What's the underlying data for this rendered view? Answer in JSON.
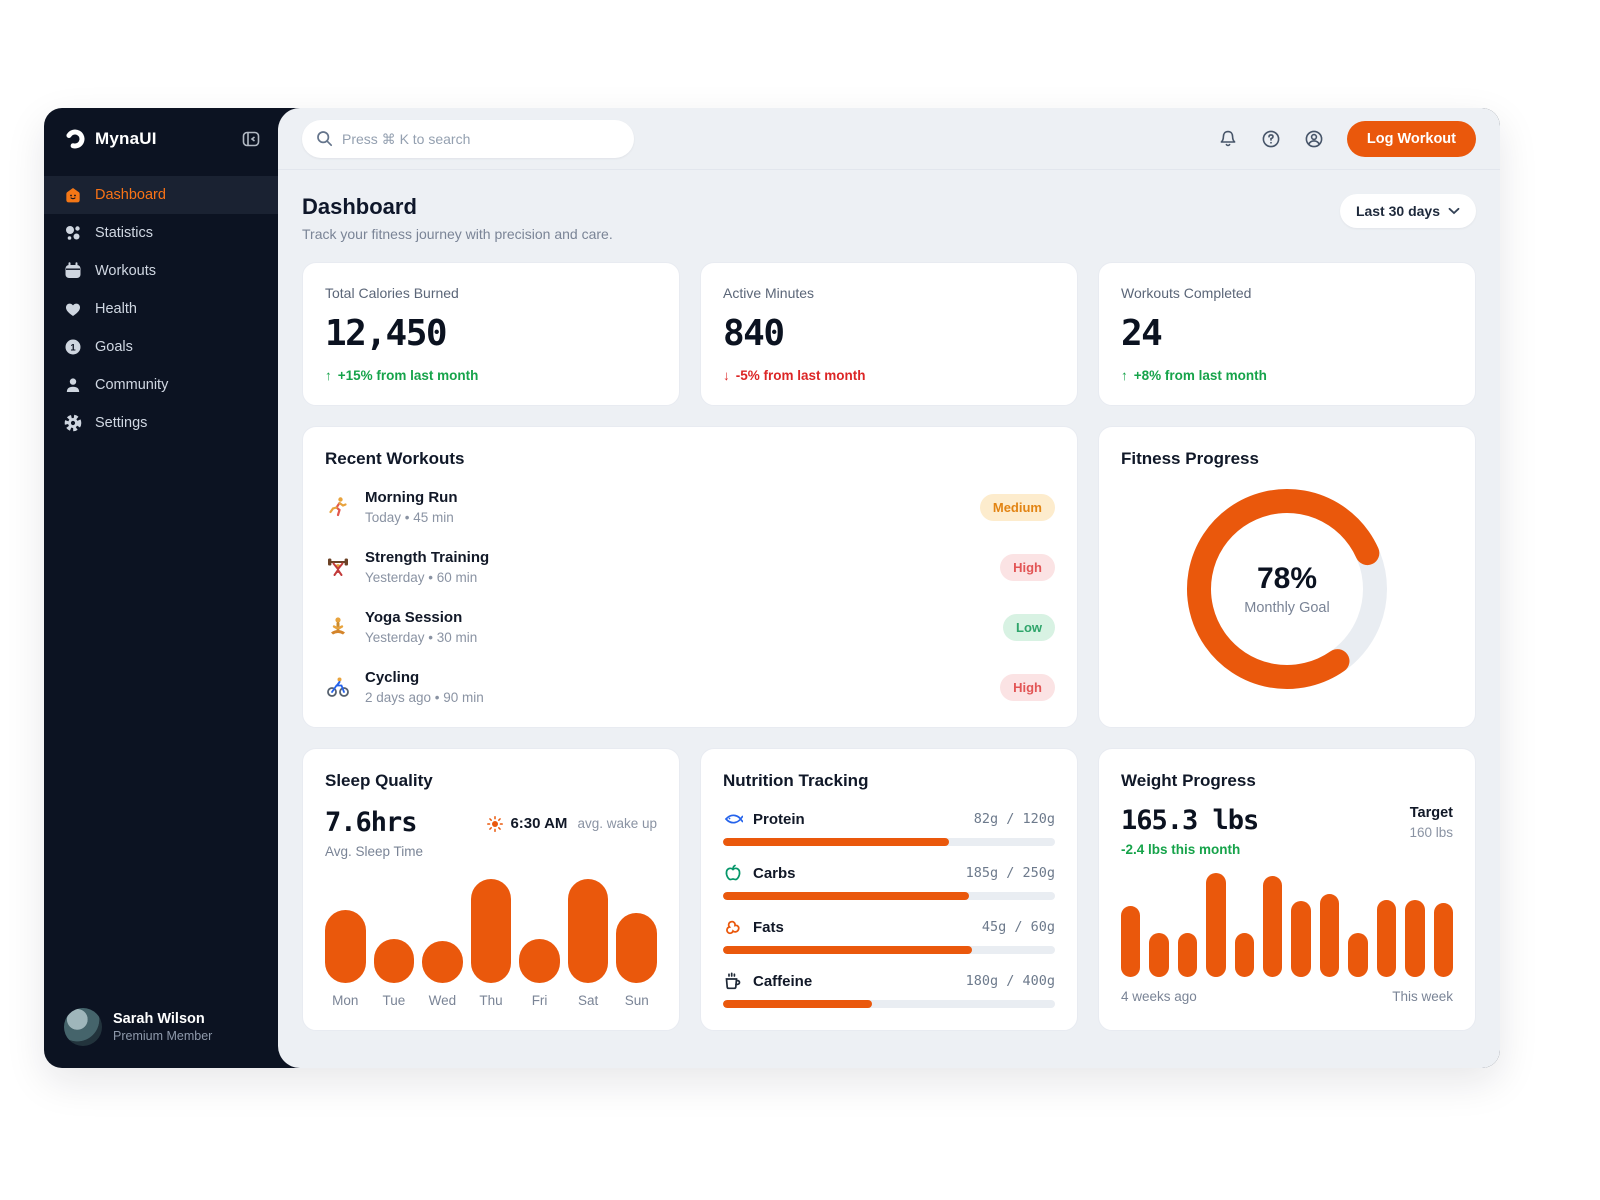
{
  "app": {
    "brand": "MynaUI",
    "accent": "#ea580c"
  },
  "sidebar": {
    "items": [
      {
        "label": "Dashboard",
        "icon": "home-icon",
        "active": true
      },
      {
        "label": "Statistics",
        "icon": "bubbles-icon",
        "active": false
      },
      {
        "label": "Workouts",
        "icon": "calendar-icon",
        "active": false
      },
      {
        "label": "Health",
        "icon": "heart-icon",
        "active": false
      },
      {
        "label": "Goals",
        "icon": "goal-icon",
        "active": false
      },
      {
        "label": "Community",
        "icon": "person-icon",
        "active": false
      },
      {
        "label": "Settings",
        "icon": "gear-icon",
        "active": false
      }
    ],
    "user": {
      "name": "Sarah Wilson",
      "role": "Premium Member"
    }
  },
  "header": {
    "search_placeholder": "Press ⌘ K to search",
    "log_workout_label": "Log Workout"
  },
  "page": {
    "title": "Dashboard",
    "subtitle": "Track your fitness journey with precision and care.",
    "range_label": "Last 30 days"
  },
  "stats": [
    {
      "label": "Total Calories Burned",
      "value": "12,450",
      "arrow": "↑",
      "change": "+15% from last month",
      "direction": "up"
    },
    {
      "label": "Active Minutes",
      "value": "840",
      "arrow": "↓",
      "change": "-5% from last month",
      "direction": "down"
    },
    {
      "label": "Workouts Completed",
      "value": "24",
      "arrow": "↑",
      "change": "+8% from last month",
      "direction": "up"
    }
  ],
  "recent_workouts": {
    "title": "Recent Workouts",
    "items": [
      {
        "name": "Morning Run",
        "meta": "Today • 45 min",
        "intensity": "Medium",
        "icon": "running-icon"
      },
      {
        "name": "Strength Training",
        "meta": "Yesterday • 60 min",
        "intensity": "High",
        "icon": "weightlifting-icon"
      },
      {
        "name": "Yoga Session",
        "meta": "Yesterday • 30 min",
        "intensity": "Low",
        "icon": "yoga-icon"
      },
      {
        "name": "Cycling",
        "meta": "2 days ago • 90 min",
        "intensity": "High",
        "icon": "cycling-icon"
      }
    ]
  },
  "fitness_progress": {
    "title": "Fitness Progress",
    "percent": 78,
    "percent_label": "78%",
    "caption": "Monthly Goal"
  },
  "sleep": {
    "title": "Sleep Quality",
    "avg_value": "7.6hrs",
    "avg_label": "Avg. Sleep Time",
    "wake_time": "6:30 AM",
    "wake_label": "avg. wake up",
    "chart": {
      "type": "bar",
      "categories": [
        "Mon",
        "Tue",
        "Wed",
        "Thu",
        "Fri",
        "Sat",
        "Sun"
      ],
      "heights_pct": [
        70,
        42,
        40,
        100,
        42,
        100,
        67
      ]
    }
  },
  "nutrition": {
    "title": "Nutrition Tracking",
    "items": [
      {
        "name": "Protein",
        "icon": "fish-icon",
        "values": "82g / 120g",
        "percent": 68
      },
      {
        "name": "Carbs",
        "icon": "apple-icon",
        "values": "185g / 250g",
        "percent": 74
      },
      {
        "name": "Fats",
        "icon": "peanut-icon",
        "values": "45g / 60g",
        "percent": 75
      },
      {
        "name": "Caffeine",
        "icon": "coffee-icon",
        "values": "180g / 400g",
        "percent": 45
      }
    ]
  },
  "weight": {
    "title": "Weight Progress",
    "value": "165.3 lbs",
    "change": "-2.4 lbs this month",
    "target_label": "Target",
    "target_value": "160 lbs",
    "chart": {
      "type": "bar",
      "heights_pct": [
        68,
        42,
        42,
        100,
        42,
        97,
        73,
        80,
        42,
        74,
        74,
        71
      ],
      "left_label": "4 weeks ago",
      "right_label": "This week"
    }
  }
}
